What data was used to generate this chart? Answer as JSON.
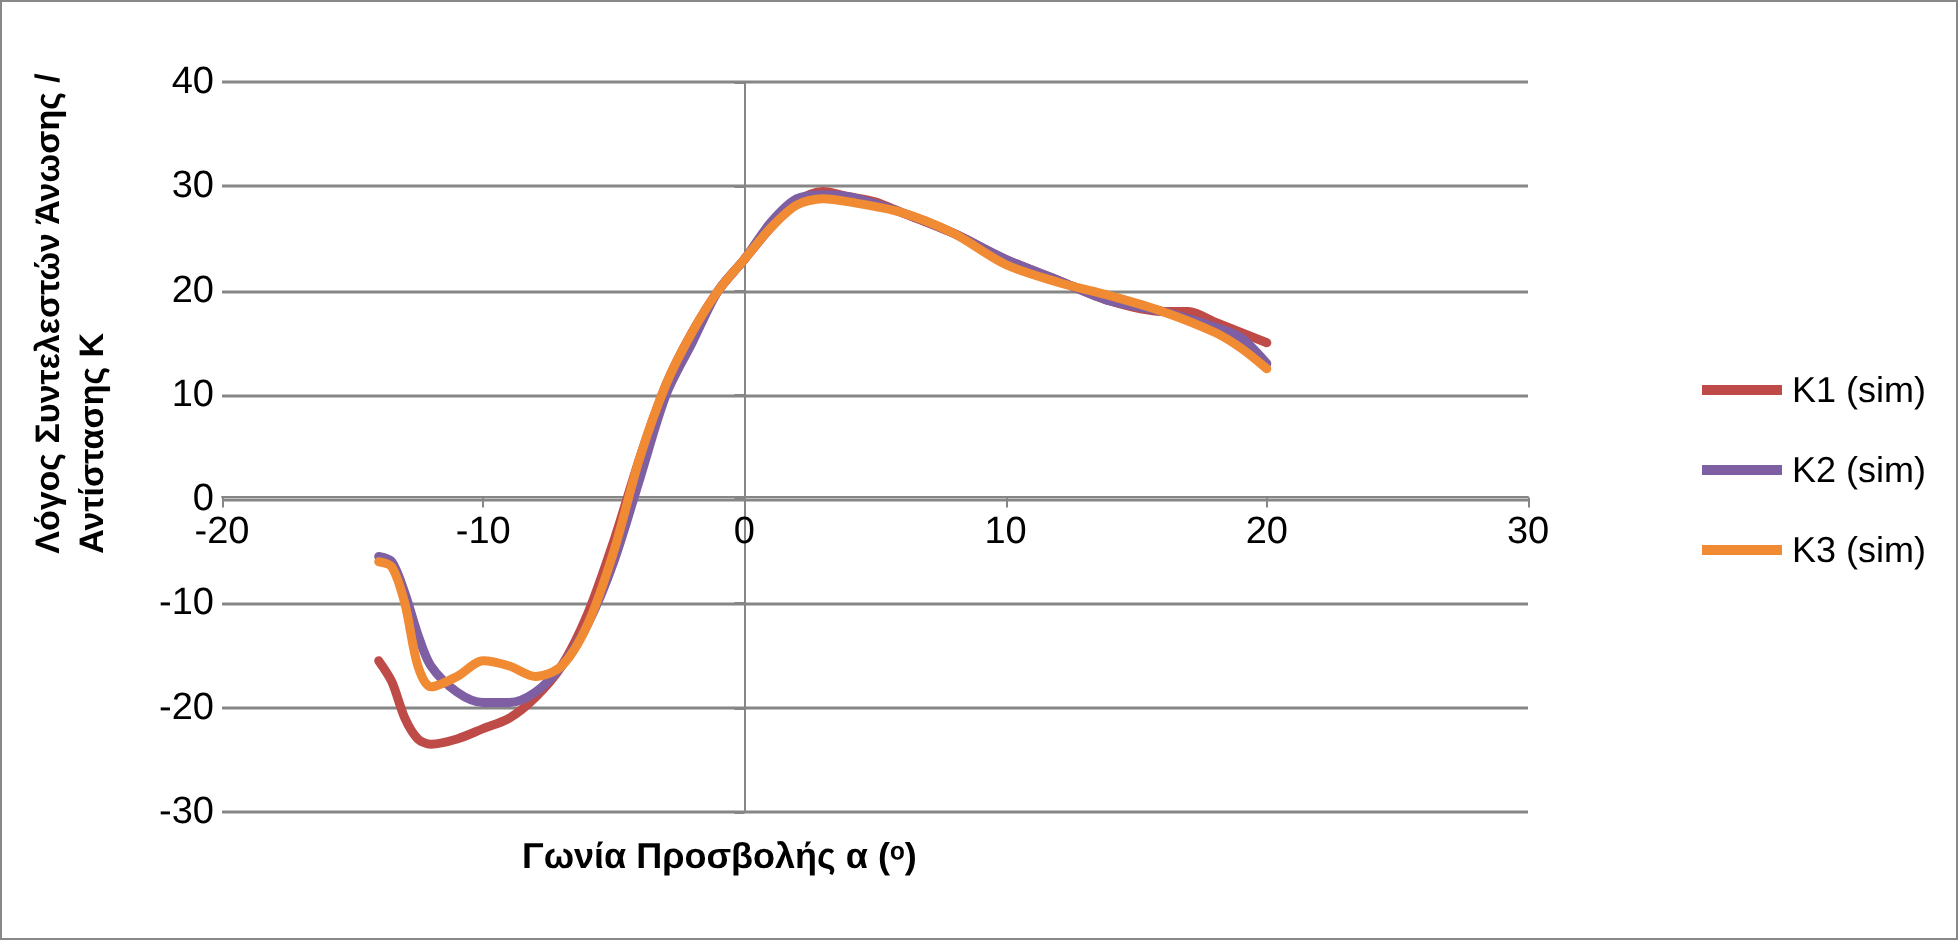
{
  "chart_data": {
    "type": "line",
    "xlabel": "Γωνία Προσβολής α (ᵒ)",
    "ylabel": "Λόγος Συντελεστών Άνωσης / Αντίστασης Κ",
    "xlim": [
      -20,
      30
    ],
    "xticks": [
      -20,
      -10,
      0,
      10,
      20,
      30
    ],
    "ylim": [
      -30,
      40
    ],
    "yticks": [
      -30,
      -20,
      -10,
      0,
      10,
      20,
      30,
      40
    ],
    "grid": "y",
    "legend": "right",
    "marker": "none",
    "line_style": "solid",
    "series": [
      {
        "name": "K1 (sim)",
        "color": "#be4b48",
        "x": [
          -14,
          -13.5,
          -13,
          -12.5,
          -12,
          -11,
          -10,
          -9,
          -8,
          -7,
          -6,
          -5,
          -4,
          -3,
          -2,
          -1,
          0,
          1,
          2,
          3,
          4,
          5,
          6,
          8,
          10,
          12,
          14,
          16,
          17,
          18,
          20
        ],
        "values": [
          -15.5,
          -17.5,
          -21,
          -23,
          -23.5,
          -23,
          -22,
          -21,
          -19,
          -16,
          -11,
          -4,
          4,
          11,
          16,
          20,
          23,
          26,
          28.5,
          29.5,
          29,
          28.5,
          27.5,
          25.5,
          23,
          21,
          19,
          18,
          18,
          17,
          15
        ]
      },
      {
        "name": "K2 (sim)",
        "color": "#7e5fa3",
        "x": [
          -14,
          -13.5,
          -13,
          -12.5,
          -12,
          -11,
          -10,
          -9,
          -8,
          -7,
          -6,
          -5,
          -4,
          -3,
          -2,
          -1,
          0,
          1,
          2,
          3,
          4,
          6,
          8,
          10,
          12,
          14,
          16,
          18,
          19,
          20
        ],
        "values": [
          -5.5,
          -6,
          -9,
          -13,
          -16,
          -18.5,
          -19.5,
          -19.5,
          -18.5,
          -16,
          -12,
          -6,
          2,
          10,
          15,
          20,
          23,
          26.5,
          28.8,
          29.2,
          29,
          27.5,
          25.5,
          23,
          21,
          19,
          18,
          16.5,
          15.5,
          13
        ]
      },
      {
        "name": "K3 (sim)",
        "color": "#f08a33",
        "x": [
          -14,
          -13.5,
          -13,
          -12.5,
          -12,
          -11,
          -10,
          -9,
          -8,
          -7,
          -6,
          -5,
          -4,
          -3,
          -2,
          -1,
          0,
          1,
          2,
          3,
          4,
          6,
          8,
          10,
          12,
          14,
          16,
          18,
          19,
          20
        ],
        "values": [
          -6,
          -6.5,
          -10,
          -16,
          -18,
          -17,
          -15.5,
          -16,
          -17,
          -16,
          -12,
          -5,
          4,
          11,
          16,
          20,
          23,
          26,
          28.2,
          28.8,
          28.5,
          27.5,
          25.5,
          22.5,
          20.8,
          19.5,
          18,
          16,
          14.5,
          12.5
        ]
      }
    ]
  }
}
